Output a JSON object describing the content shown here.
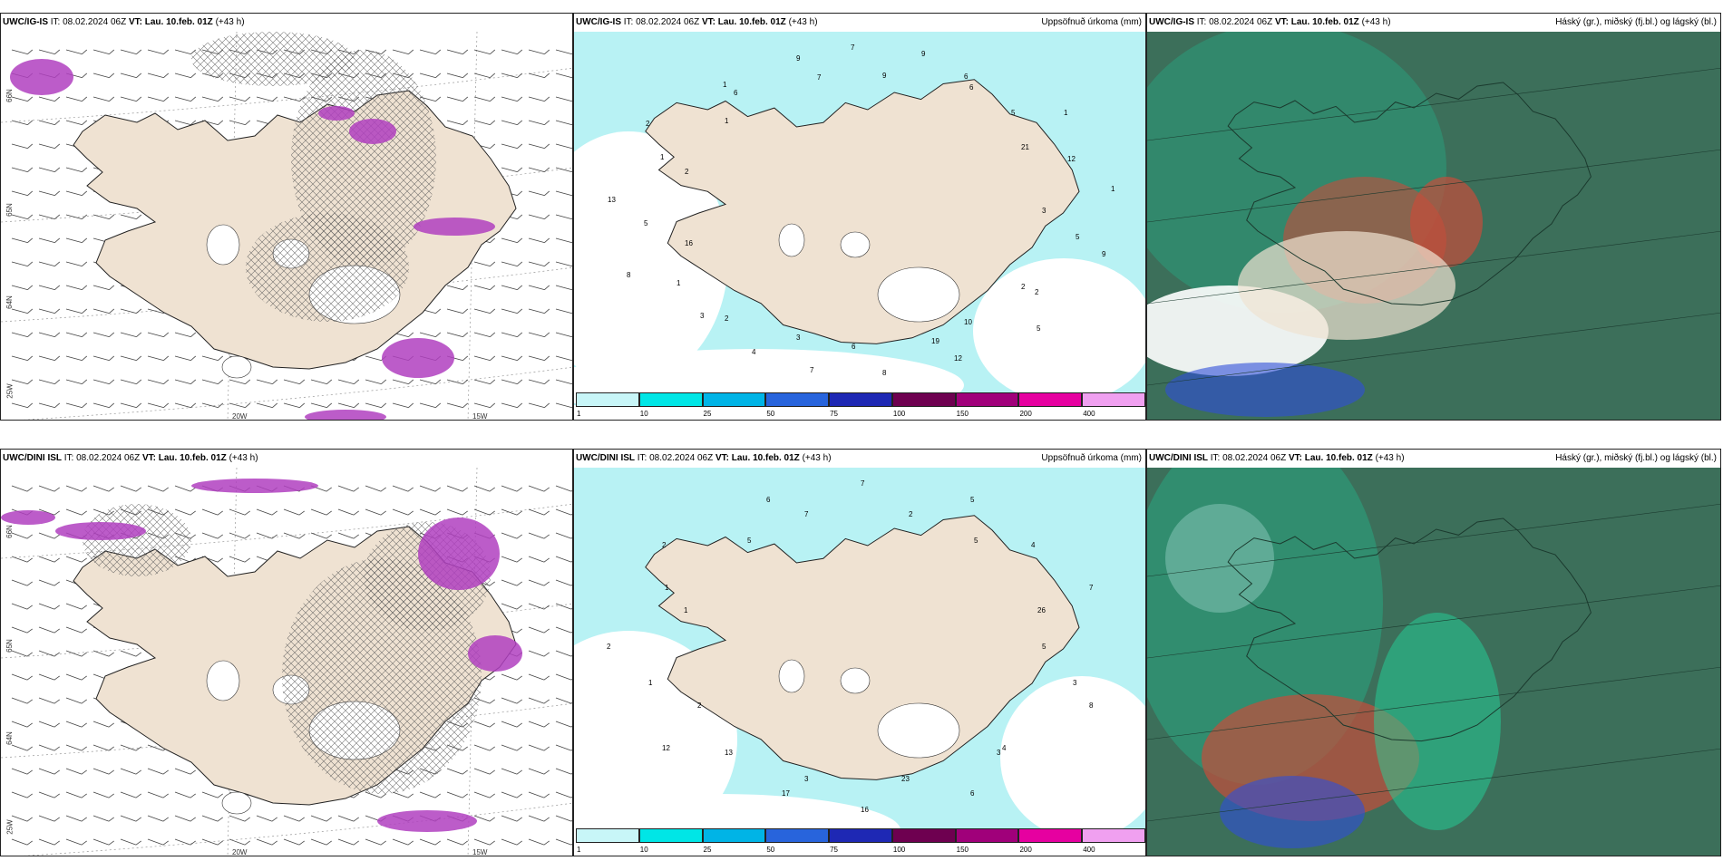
{
  "panels": [
    {
      "id": "p1",
      "model": "UWC/IG-IS",
      "it_label": "IT:",
      "it": "08.02.2024 06Z",
      "vt_label": "VT:",
      "vt": "Lau. 10.feb. 01Z",
      "lead": "(+43 h)",
      "right_title": "",
      "type": "wind",
      "axis_labels": {
        "bottom": [
          "20W",
          "15W"
        ],
        "left": [
          "66N",
          "65N",
          "64N",
          "25W"
        ]
      }
    },
    {
      "id": "p2",
      "model": "UWC/IG-IS",
      "it_label": "IT:",
      "it": "08.02.2024 06Z",
      "vt_label": "VT:",
      "vt": "Lau. 10.feb. 01Z",
      "lead": "(+43 h)",
      "right_title": "Uppsöfnuð úrkoma (mm)",
      "type": "precip",
      "precip_numbers": [
        "3",
        "5",
        "9",
        "2",
        "2",
        "5",
        "10",
        "12",
        "19",
        "8",
        "6",
        "7",
        "3",
        "4",
        "3",
        "2",
        "1",
        "8",
        "16",
        "5",
        "13",
        "2",
        "1",
        "2",
        "1",
        "1",
        "6",
        "9",
        "7",
        "7",
        "9",
        "9",
        "6",
        "6",
        "5",
        "1",
        "21",
        "12",
        "1"
      ]
    },
    {
      "id": "p3",
      "model": "UWC/IG-IS",
      "it_label": "IT:",
      "it": "08.02.2024 06Z",
      "vt_label": "VT:",
      "vt": "Lau. 10.feb. 01Z",
      "lead": "(+43 h)",
      "right_title": "Háský (gr.), miðský (fj.bl.) og lágský (bl.)",
      "type": "cloud"
    },
    {
      "id": "p4",
      "model": "UWC/DINI ISL",
      "it_label": "IT:",
      "it": "08.02.2024 06Z",
      "vt_label": "VT:",
      "vt": "Lau. 10.feb. 01Z",
      "lead": "(+43 h)",
      "right_title": "",
      "type": "wind",
      "axis_labels": {
        "bottom": [
          "20W",
          "15W"
        ],
        "left": [
          "66N",
          "65N",
          "64N",
          "25W"
        ]
      }
    },
    {
      "id": "p5",
      "model": "UWC/DINI ISL",
      "it_label": "IT:",
      "it": "08.02.2024 06Z",
      "vt_label": "VT:",
      "vt": "Lau. 10.feb. 01Z",
      "lead": "(+43 h)",
      "right_title": "Uppsöfnuð úrkoma (mm)",
      "type": "precip",
      "precip_numbers": [
        "5",
        "3",
        "8",
        "4",
        "3",
        "6",
        "23",
        "16",
        "3",
        "17",
        "13",
        "12",
        "2",
        "1",
        "2",
        "1",
        "1",
        "2",
        "5",
        "6",
        "7",
        "7",
        "2",
        "5",
        "5",
        "4",
        "7",
        "26"
      ]
    },
    {
      "id": "p6",
      "model": "UWC/DINI ISL",
      "it_label": "IT:",
      "it": "08.02.2024 06Z",
      "vt_label": "VT:",
      "vt": "Lau. 10.feb. 01Z",
      "lead": "(+43 h)",
      "right_title": "Háský (gr.), miðský (fj.bl.) og lágský (bl.)",
      "type": "cloud"
    }
  ],
  "colorbar": {
    "labels": [
      "1",
      "10",
      "25",
      "50",
      "75",
      "100",
      "150",
      "200",
      "400"
    ],
    "colors": [
      "#c8f6f8",
      "#00e6e6",
      "#00b4e6",
      "#2864dc",
      "#1e28b4",
      "#6e0050",
      "#a0007a",
      "#e600a0",
      "#f0a0f0"
    ]
  },
  "colors": {
    "land": "#efe2d2",
    "sea_precip": "#b8f2f4",
    "hatch": "#555555",
    "wind_barb": "#444444",
    "magenta": "#b040c0",
    "cloud_dark": "#3c6f5a",
    "cloud_mid": "#2c9a78",
    "cloud_bright": "#22d49a",
    "cloud_red": "#c44d3a",
    "cloud_blue": "#2f4fd8"
  }
}
